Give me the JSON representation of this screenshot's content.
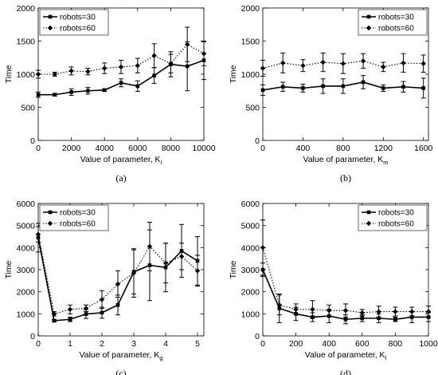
{
  "legend_labels": [
    "robots=30",
    "robots=60"
  ],
  "chart_data": [
    {
      "type": "line",
      "caption": "(a)",
      "xlabel": "Value of parameter, K",
      "xlabel_sub": "i",
      "ylabel": "Time",
      "xlim": [
        0,
        10000
      ],
      "ylim": [
        0,
        2000
      ],
      "xticks": [
        0,
        2000,
        4000,
        6000,
        8000,
        10000
      ],
      "yticks": [
        0,
        500,
        1000,
        1500,
        2000
      ],
      "legend_position": "top-left",
      "grid": false,
      "x": [
        0,
        1000,
        2000,
        3000,
        4000,
        5000,
        6000,
        7000,
        8000,
        9000,
        10000
      ],
      "series": [
        {
          "name": "robots=30",
          "style": "solid",
          "marker": "square",
          "values": [
            690,
            690,
            730,
            750,
            760,
            870,
            820,
            980,
            1150,
            1120,
            1210
          ],
          "errors": [
            40,
            20,
            50,
            50,
            20,
            60,
            80,
            120,
            190,
            370,
            290
          ]
        },
        {
          "name": "robots=60",
          "style": "dotted",
          "marker": "diamond",
          "values": [
            1000,
            1000,
            1050,
            1040,
            1090,
            1110,
            1130,
            1280,
            1160,
            1450,
            1310
          ],
          "errors": [
            60,
            30,
            60,
            50,
            80,
            100,
            110,
            180,
            140,
            260,
            180
          ]
        }
      ]
    },
    {
      "type": "line",
      "caption": "(b)",
      "xlabel": "Value of parameter, K",
      "xlabel_sub": "m",
      "ylabel": "Time",
      "xlim": [
        0,
        1650
      ],
      "ylim": [
        0,
        2000
      ],
      "xticks": [
        0,
        400,
        800,
        1200,
        1600
      ],
      "yticks": [
        0,
        500,
        1000,
        1500,
        2000
      ],
      "legend_position": "top-right",
      "grid": false,
      "x": [
        0,
        200,
        400,
        600,
        800,
        1000,
        1200,
        1400,
        1600
      ],
      "series": [
        {
          "name": "robots=30",
          "style": "solid",
          "marker": "square",
          "values": [
            760,
            810,
            790,
            820,
            820,
            880,
            790,
            810,
            790
          ],
          "errors": [
            80,
            70,
            60,
            110,
            110,
            100,
            50,
            80,
            150
          ]
        },
        {
          "name": "robots=60",
          "style": "dotted",
          "marker": "diamond",
          "values": [
            1090,
            1170,
            1130,
            1180,
            1160,
            1200,
            1110,
            1170,
            1160
          ],
          "errors": [
            120,
            150,
            90,
            140,
            150,
            110,
            70,
            140,
            130
          ]
        }
      ]
    },
    {
      "type": "line",
      "caption": "(c)",
      "xlabel": "Value of parameter, K",
      "xlabel_sub": "g",
      "ylabel": "Time",
      "xlim": [
        0,
        5.2
      ],
      "ylim": [
        0,
        6000
      ],
      "xticks": [
        0,
        1,
        2,
        3,
        4,
        5
      ],
      "yticks": [
        0,
        1000,
        2000,
        3000,
        4000,
        5000,
        6000
      ],
      "legend_position": "top-left",
      "grid": false,
      "x": [
        0,
        0.5,
        1,
        1.5,
        2,
        2.5,
        3,
        3.5,
        4,
        4.5,
        5
      ],
      "series": [
        {
          "name": "robots=30",
          "style": "solid",
          "marker": "square",
          "values": [
            4450,
            690,
            750,
            990,
            1050,
            1400,
            2900,
            3200,
            3100,
            3850,
            3400
          ],
          "errors": [
            650,
            50,
            100,
            200,
            250,
            450,
            1000,
            1600,
            1100,
            1200,
            1100
          ]
        },
        {
          "name": "robots=60",
          "style": "dotted",
          "marker": "diamond",
          "values": [
            4600,
            1000,
            1200,
            1250,
            1650,
            2350,
            2850,
            4050,
            3300,
            3600,
            2950
          ],
          "errors": [
            350,
            100,
            200,
            150,
            400,
            600,
            1100,
            1100,
            900,
            600,
            700
          ]
        }
      ]
    },
    {
      "type": "line",
      "caption": "(d)",
      "xlabel": "Value of parameter, K",
      "xlabel_sub": "l",
      "ylabel": "Time",
      "xlim": [
        0,
        1000
      ],
      "ylim": [
        0,
        6000
      ],
      "xticks": [
        0,
        200,
        400,
        600,
        800,
        1000
      ],
      "yticks": [
        0,
        1000,
        2000,
        3000,
        4000,
        5000,
        6000
      ],
      "legend_position": "top-right",
      "grid": false,
      "x": [
        0,
        100,
        200,
        300,
        400,
        500,
        600,
        700,
        800,
        900,
        1000
      ],
      "series": [
        {
          "name": "robots=30",
          "style": "solid",
          "marker": "square",
          "values": [
            3000,
            1250,
            1000,
            850,
            900,
            750,
            800,
            800,
            750,
            850,
            850
          ],
          "errors": [
            300,
            650,
            300,
            200,
            300,
            200,
            150,
            200,
            100,
            250,
            200
          ]
        },
        {
          "name": "robots=60",
          "style": "dotted",
          "marker": "diamond",
          "values": [
            4000,
            1400,
            1200,
            1200,
            1150,
            1150,
            1050,
            1100,
            1100,
            1100,
            1100
          ],
          "errors": [
            1250,
            450,
            250,
            400,
            250,
            300,
            150,
            250,
            200,
            200,
            250
          ]
        }
      ]
    }
  ]
}
